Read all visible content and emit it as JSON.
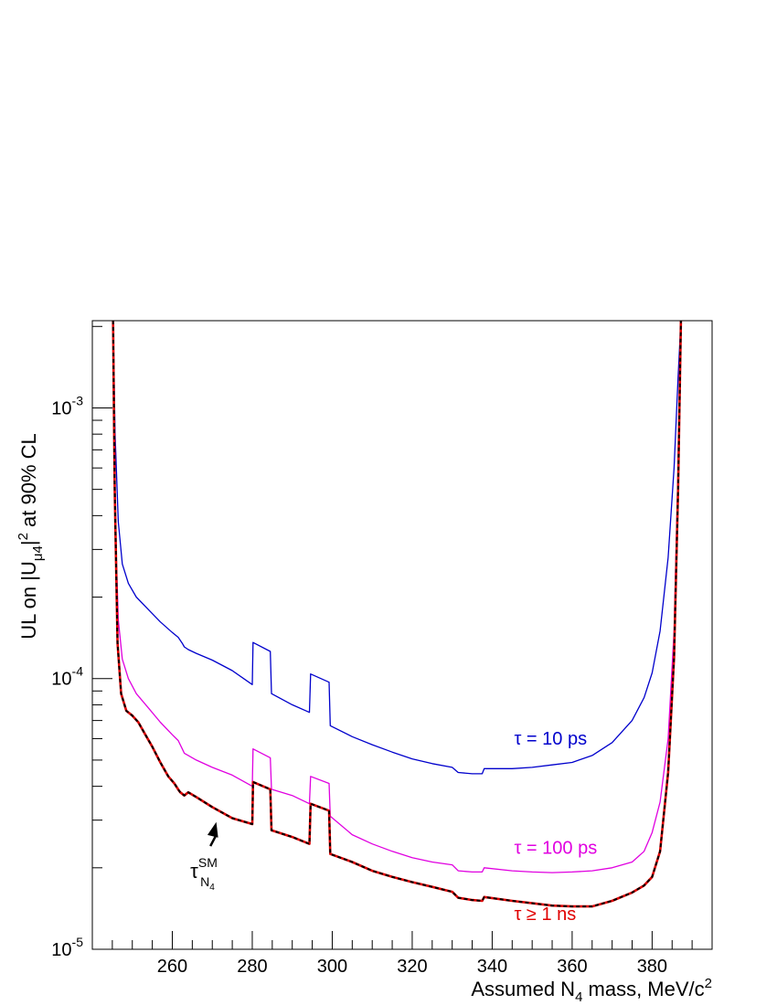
{
  "chart_data": {
    "type": "line",
    "xlabel": "Assumed N4 mass, MeV/c2",
    "xlabel_parts": {
      "main": "Assumed N",
      "sub": "4",
      "rest": " mass, MeV/c",
      "sup": "2"
    },
    "ylabel": "UL on |Uμ4|2 at 90% CL",
    "ylabel_parts": {
      "pre": "UL on |U",
      "sub": "μ4",
      "mid": "|",
      "sup": "2",
      "post": " at 90% CL"
    },
    "xlim": [
      240,
      395
    ],
    "ylim": [
      1e-05,
      0.0021
    ],
    "yscale": "log",
    "grid": false,
    "x_ticks": [
      260,
      280,
      300,
      320,
      340,
      360,
      380
    ],
    "y_ticks": [
      {
        "value": 1e-05,
        "base": "10",
        "exp": "-5"
      },
      {
        "value": 0.0001,
        "base": "10",
        "exp": "-4"
      },
      {
        "value": 0.001,
        "base": "10",
        "exp": "-3"
      }
    ],
    "series": [
      {
        "name": "τ = 10 ps",
        "color": "#0000cc",
        "style": "solid",
        "x": [
          245.2,
          245.7,
          246.5,
          247.5,
          249,
          251,
          254,
          257,
          260,
          261.5,
          262.5,
          263,
          264,
          266,
          270,
          275,
          280,
          280.2,
          284.5,
          284.8,
          290,
          294.3,
          294.6,
          299.2,
          299.5,
          305,
          310,
          315,
          320,
          325,
          330,
          331.5,
          335,
          337.5,
          338,
          345,
          350,
          355,
          360,
          365,
          370,
          375,
          378,
          380,
          382,
          384,
          385.5,
          386.5,
          387.2
        ],
        "y": [
          0.0021,
          0.0008,
          0.00038,
          0.000265,
          0.000225,
          0.0002,
          0.00018,
          0.000162,
          0.000148,
          0.000142,
          0.000135,
          0.000131,
          0.000128,
          0.000124,
          0.000117,
          0.000107,
          9.5e-05,
          0.000136,
          0.000126,
          8.8e-05,
          8e-05,
          7.5e-05,
          0.000104,
          9.7e-05,
          6.7e-05,
          6.1e-05,
          5.7e-05,
          5.35e-05,
          5.05e-05,
          4.85e-05,
          4.7e-05,
          4.5e-05,
          4.45e-05,
          4.45e-05,
          4.65e-05,
          4.65e-05,
          4.7e-05,
          4.8e-05,
          4.9e-05,
          5.2e-05,
          5.8e-05,
          7e-05,
          8.5e-05,
          0.000105,
          0.00015,
          0.00028,
          0.0006,
          0.0013,
          0.0021
        ]
      },
      {
        "name": "τ = 100 ps",
        "color": "#e000e0",
        "style": "solid",
        "x": [
          245.2,
          245.7,
          246.5,
          247.5,
          249,
          251,
          254,
          257,
          260,
          261.5,
          262.5,
          263,
          264,
          266,
          270,
          275,
          280,
          280.2,
          284.5,
          284.8,
          290,
          294.3,
          294.6,
          299.2,
          299.5,
          305,
          310,
          315,
          320,
          325,
          330,
          331.5,
          335,
          337.5,
          338,
          345,
          350,
          355,
          360,
          365,
          370,
          375,
          378,
          380,
          382,
          384,
          385.5,
          386.5,
          387.2
        ],
        "y": [
          0.0021,
          0.0004,
          0.000165,
          0.000118,
          0.0001,
          8.8e-05,
          7.8e-05,
          6.9e-05,
          6.2e-05,
          5.9e-05,
          5.5e-05,
          5.3e-05,
          5.2e-05,
          5e-05,
          4.7e-05,
          4.4e-05,
          4e-05,
          5.5e-05,
          5.1e-05,
          3.9e-05,
          3.7e-05,
          3.45e-05,
          4.35e-05,
          4.1e-05,
          3.1e-05,
          2.65e-05,
          2.45e-05,
          2.3e-05,
          2.18e-05,
          2.1e-05,
          2.05e-05,
          1.95e-05,
          1.93e-05,
          1.93e-05,
          2e-05,
          1.95e-05,
          1.93e-05,
          1.92e-05,
          1.93e-05,
          1.95e-05,
          2e-05,
          2.1e-05,
          2.3e-05,
          2.7e-05,
          3.5e-05,
          6e-05,
          0.00015,
          0.0006,
          0.0021
        ]
      },
      {
        "name": "τ ≥ 1 ns",
        "color": "#e00000",
        "style": "solid",
        "x": [
          245.2,
          245.6,
          246.3,
          247.2,
          248.5,
          250,
          251.5,
          253,
          255,
          257,
          259,
          260.5,
          261.7,
          262,
          263,
          264,
          266,
          270,
          275,
          280,
          280.2,
          284.5,
          284.8,
          290,
          294.3,
          294.6,
          299.2,
          299.5,
          305,
          310,
          315,
          320,
          325,
          330,
          331.5,
          335,
          337.5,
          338,
          345,
          350,
          355,
          360,
          365,
          370,
          375,
          378,
          380,
          382,
          384,
          385.5,
          386.5,
          387.2
        ],
        "y": [
          0.0021,
          0.0005,
          0.000135,
          8.8e-05,
          7.6e-05,
          7.3e-05,
          6.9e-05,
          6.3e-05,
          5.6e-05,
          4.9e-05,
          4.35e-05,
          4.1e-05,
          3.85e-05,
          3.8e-05,
          3.7e-05,
          3.8e-05,
          3.65e-05,
          3.35e-05,
          3.05e-05,
          2.9e-05,
          4.15e-05,
          3.9e-05,
          2.75e-05,
          2.6e-05,
          2.45e-05,
          3.45e-05,
          3.25e-05,
          2.25e-05,
          2.1e-05,
          1.95e-05,
          1.85e-05,
          1.77e-05,
          1.7e-05,
          1.63e-05,
          1.55e-05,
          1.52e-05,
          1.51e-05,
          1.56e-05,
          1.51e-05,
          1.48e-05,
          1.45e-05,
          1.44e-05,
          1.44e-05,
          1.51e-05,
          1.62e-05,
          1.72e-05,
          1.85e-05,
          2.3e-05,
          4.5e-05,
          0.00012,
          0.0005,
          0.0021
        ]
      },
      {
        "name": "τSM N4",
        "color": "#000000",
        "style": "dashed",
        "x": [
          245.2,
          245.6,
          246.3,
          247.2,
          248.5,
          250,
          251.5,
          253,
          255,
          257,
          259,
          260.5,
          261.7,
          262,
          263,
          264,
          266,
          270,
          275,
          280,
          280.2,
          284.5,
          284.8,
          290,
          294.3,
          294.6,
          299.2,
          299.5,
          305,
          310,
          315,
          320,
          325,
          330,
          331.5,
          335,
          337.5,
          338,
          345,
          350,
          355,
          360,
          365,
          370,
          375,
          378,
          380,
          382,
          384,
          385.5,
          386.5,
          387.2
        ],
        "y": [
          0.0021,
          0.0005,
          0.000135,
          8.8e-05,
          7.6e-05,
          7.3e-05,
          6.9e-05,
          6.3e-05,
          5.6e-05,
          4.9e-05,
          4.35e-05,
          4.1e-05,
          3.85e-05,
          3.8e-05,
          3.7e-05,
          3.8e-05,
          3.65e-05,
          3.35e-05,
          3.05e-05,
          2.9e-05,
          4.15e-05,
          3.9e-05,
          2.75e-05,
          2.6e-05,
          2.45e-05,
          3.45e-05,
          3.25e-05,
          2.25e-05,
          2.1e-05,
          1.95e-05,
          1.85e-05,
          1.77e-05,
          1.7e-05,
          1.63e-05,
          1.55e-05,
          1.52e-05,
          1.51e-05,
          1.56e-05,
          1.51e-05,
          1.48e-05,
          1.45e-05,
          1.44e-05,
          1.44e-05,
          1.51e-05,
          1.62e-05,
          1.72e-05,
          1.85e-05,
          2.3e-05,
          4.5e-05,
          0.00012,
          0.0005,
          0.0021
        ]
      }
    ],
    "annotations": [
      {
        "text": "τ = 10 ps",
        "x": 345.5,
        "y": 5.7e-05,
        "color": "#0000cc"
      },
      {
        "text": "τ = 100 ps",
        "x": 345.5,
        "y": 2.25e-05,
        "color": "#e000e0"
      },
      {
        "text": "τ ≥ 1 ns",
        "x": 345.5,
        "y": 1.28e-05,
        "color": "#e00000"
      }
    ],
    "arrow_label": {
      "base": "τ",
      "sup": "SM",
      "sub": "N",
      "subsub": "4",
      "x": 264.5,
      "y": 1.95e-05,
      "points_to": [
        271,
        2.95e-05
      ]
    }
  }
}
